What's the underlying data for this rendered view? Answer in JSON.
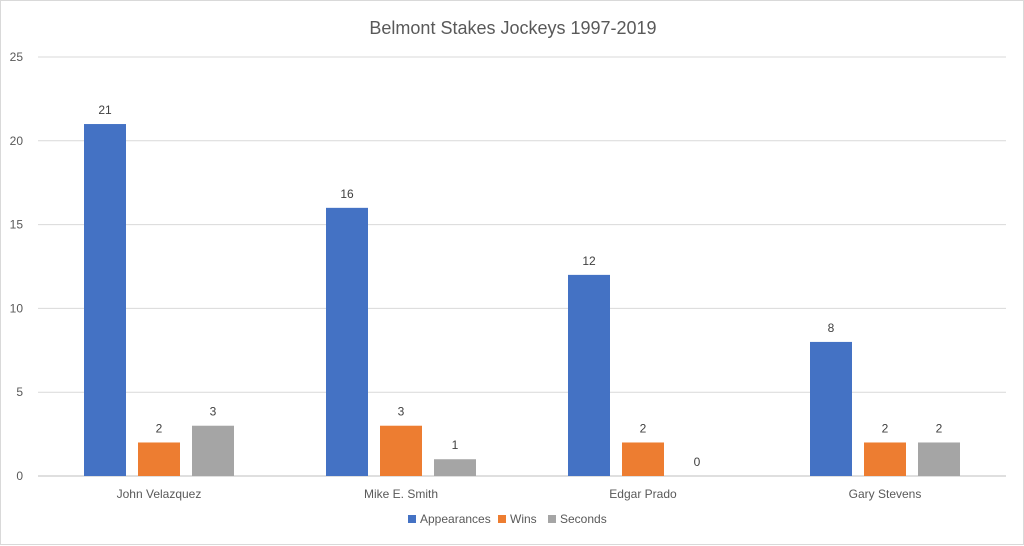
{
  "chart_data": {
    "type": "bar",
    "title": "Belmont Stakes Jockeys 1997-2019",
    "xlabel": "",
    "ylabel": "",
    "categories": [
      "John Velazquez",
      "Mike E. Smith",
      "Edgar Prado",
      "Gary Stevens"
    ],
    "series": [
      {
        "name": "Appearances",
        "values": [
          21,
          16,
          12,
          8
        ],
        "color": "#4472C4"
      },
      {
        "name": "Wins",
        "values": [
          2,
          3,
          2,
          2
        ],
        "color": "#ED7D31"
      },
      {
        "name": "Seconds",
        "values": [
          3,
          1,
          0,
          2
        ],
        "color": "#A5A5A5"
      }
    ],
    "ylim": [
      0,
      25
    ],
    "yticks": [
      0,
      5,
      10,
      15,
      20,
      25
    ],
    "grid": true,
    "legend": "bottom"
  }
}
